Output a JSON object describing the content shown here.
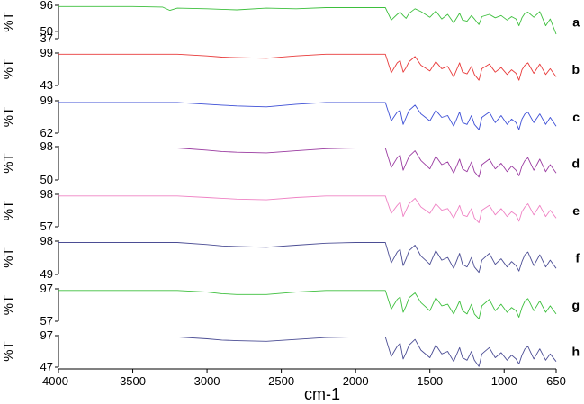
{
  "chart_data": {
    "type": "line",
    "xlabel": "cm-1",
    "xlim": [
      4000,
      650
    ],
    "x_reversed": true,
    "x_ticks": [
      4000,
      3500,
      3000,
      2500,
      2000,
      1500,
      1000,
      650
    ],
    "grid": false,
    "panels": [
      {
        "letter": "a",
        "ylabel": "%T",
        "y_ticks": [
          96,
          50,
          37
        ],
        "ylim": [
          37,
          96
        ],
        "color": "#3dbf3d",
        "x": [
          4000,
          3500,
          3300,
          3250,
          3200,
          3000,
          2900,
          2800,
          2600,
          2400,
          2200,
          2000,
          1800,
          1760,
          1720,
          1700,
          1680,
          1660,
          1640,
          1600,
          1560,
          1500,
          1460,
          1420,
          1380,
          1340,
          1300,
          1280,
          1250,
          1220,
          1200,
          1170,
          1150,
          1100,
          1060,
          1020,
          980,
          950,
          920,
          900,
          880,
          860,
          840,
          800,
          760,
          720,
          690,
          650
        ],
        "y": [
          94,
          94,
          93,
          87,
          91,
          90,
          89,
          88,
          91,
          90,
          92,
          92,
          92,
          70,
          80,
          84,
          78,
          73,
          82,
          90,
          85,
          75,
          86,
          72,
          80,
          65,
          82,
          70,
          68,
          78,
          72,
          62,
          76,
          80,
          74,
          78,
          70,
          76,
          72,
          60,
          74,
          82,
          84,
          75,
          85,
          60,
          72,
          45
        ]
      },
      {
        "letter": "b",
        "ylabel": "%T",
        "y_ticks": [
          99,
          43
        ],
        "ylim": [
          43,
          99
        ],
        "color": "#e83a3a",
        "x": [
          4000,
          3500,
          3200,
          3000,
          2900,
          2800,
          2600,
          2400,
          2200,
          2000,
          1800,
          1760,
          1720,
          1700,
          1680,
          1660,
          1640,
          1600,
          1560,
          1500,
          1460,
          1420,
          1380,
          1340,
          1300,
          1280,
          1250,
          1220,
          1200,
          1170,
          1150,
          1100,
          1060,
          1020,
          980,
          950,
          920,
          900,
          880,
          860,
          840,
          800,
          760,
          720,
          690,
          650
        ],
        "y": [
          97,
          97,
          97,
          94,
          92,
          91,
          90,
          94,
          97,
          97,
          97,
          65,
          82,
          86,
          66,
          74,
          84,
          93,
          78,
          68,
          84,
          72,
          76,
          58,
          82,
          66,
          63,
          76,
          62,
          52,
          72,
          80,
          66,
          74,
          62,
          70,
          64,
          52,
          70,
          78,
          82,
          64,
          80,
          62,
          72,
          58
        ]
      },
      {
        "letter": "c",
        "ylabel": "%T",
        "y_ticks": [
          99,
          62
        ],
        "ylim": [
          62,
          99
        ],
        "color": "#3d4fd6",
        "x": [
          4000,
          3500,
          3200,
          3000,
          2900,
          2800,
          2600,
          2400,
          2200,
          2000,
          1800,
          1760,
          1720,
          1700,
          1680,
          1660,
          1640,
          1600,
          1560,
          1500,
          1460,
          1420,
          1380,
          1340,
          1300,
          1280,
          1250,
          1220,
          1200,
          1170,
          1150,
          1100,
          1060,
          1020,
          980,
          950,
          920,
          900,
          880,
          860,
          840,
          800,
          760,
          720,
          690,
          650
        ],
        "y": [
          97,
          97,
          97,
          95,
          94,
          93,
          92,
          95,
          97,
          97,
          97,
          76,
          86,
          88,
          72,
          80,
          88,
          94,
          84,
          76,
          88,
          80,
          82,
          70,
          86,
          74,
          72,
          82,
          72,
          66,
          80,
          86,
          74,
          82,
          72,
          78,
          74,
          66,
          78,
          84,
          86,
          74,
          84,
          72,
          80,
          70
        ]
      },
      {
        "letter": "d",
        "ylabel": "%T",
        "y_ticks": [
          98,
          50
        ],
        "ylim": [
          50,
          98
        ],
        "color": "#9a3aa0",
        "x": [
          4000,
          3500,
          3200,
          3000,
          2900,
          2800,
          2600,
          2400,
          2200,
          2000,
          1800,
          1760,
          1720,
          1700,
          1680,
          1660,
          1640,
          1600,
          1560,
          1500,
          1460,
          1420,
          1380,
          1340,
          1300,
          1280,
          1250,
          1220,
          1200,
          1170,
          1150,
          1100,
          1060,
          1020,
          980,
          950,
          920,
          900,
          880,
          860,
          840,
          800,
          760,
          720,
          690,
          650
        ],
        "y": [
          96,
          96,
          96,
          93,
          91,
          90,
          89,
          92,
          95,
          96,
          96,
          68,
          82,
          86,
          64,
          74,
          84,
          92,
          78,
          66,
          84,
          72,
          76,
          60,
          80,
          66,
          62,
          76,
          62,
          54,
          72,
          80,
          66,
          74,
          62,
          70,
          64,
          56,
          70,
          78,
          82,
          64,
          80,
          62,
          72,
          60
        ]
      },
      {
        "letter": "e",
        "ylabel": "%T",
        "y_ticks": [
          98,
          57
        ],
        "ylim": [
          57,
          98
        ],
        "color": "#ef82c4",
        "x": [
          4000,
          3500,
          3200,
          3000,
          2900,
          2800,
          2600,
          2400,
          2200,
          2000,
          1800,
          1760,
          1720,
          1700,
          1680,
          1660,
          1640,
          1600,
          1560,
          1500,
          1460,
          1420,
          1380,
          1340,
          1300,
          1280,
          1250,
          1220,
          1200,
          1170,
          1150,
          1100,
          1060,
          1020,
          980,
          950,
          920,
          900,
          880,
          860,
          840,
          800,
          760,
          720,
          690,
          650
        ],
        "y": [
          96,
          96,
          96,
          94,
          93,
          92,
          91,
          94,
          96,
          96,
          96,
          74,
          84,
          88,
          70,
          78,
          86,
          93,
          82,
          74,
          86,
          78,
          80,
          68,
          84,
          72,
          70,
          80,
          68,
          62,
          78,
          84,
          72,
          80,
          70,
          76,
          72,
          64,
          76,
          82,
          86,
          72,
          84,
          70,
          78,
          68
        ]
      },
      {
        "letter": "f",
        "ylabel": "%T",
        "y_ticks": [
          98,
          49
        ],
        "ylim": [
          49,
          98
        ],
        "color": "#4b4d94",
        "x": [
          4000,
          3500,
          3200,
          3000,
          2900,
          2800,
          2600,
          2400,
          2200,
          2000,
          1800,
          1760,
          1720,
          1700,
          1680,
          1660,
          1640,
          1600,
          1560,
          1500,
          1460,
          1420,
          1380,
          1340,
          1300,
          1280,
          1250,
          1220,
          1200,
          1170,
          1150,
          1100,
          1060,
          1020,
          980,
          950,
          920,
          900,
          880,
          860,
          840,
          800,
          760,
          720,
          690,
          650
        ],
        "y": [
          96,
          96,
          96,
          93,
          91,
          90,
          89,
          92,
          95,
          96,
          96,
          66,
          82,
          86,
          62,
          72,
          84,
          92,
          76,
          64,
          84,
          70,
          74,
          58,
          80,
          64,
          60,
          74,
          60,
          52,
          70,
          80,
          64,
          72,
          60,
          68,
          62,
          54,
          68,
          78,
          82,
          62,
          78,
          60,
          70,
          58
        ]
      },
      {
        "letter": "g",
        "ylabel": "%T",
        "y_ticks": [
          97,
          57
        ],
        "ylim": [
          57,
          97
        ],
        "color": "#3dbf3d",
        "x": [
          4000,
          3500,
          3200,
          3000,
          2900,
          2800,
          2600,
          2400,
          2200,
          2000,
          1800,
          1760,
          1720,
          1700,
          1680,
          1660,
          1640,
          1600,
          1560,
          1500,
          1460,
          1420,
          1380,
          1340,
          1300,
          1280,
          1250,
          1220,
          1200,
          1170,
          1150,
          1100,
          1060,
          1020,
          980,
          950,
          920,
          900,
          880,
          860,
          840,
          800,
          760,
          720,
          690,
          650
        ],
        "y": [
          95,
          95,
          95,
          93,
          91,
          90,
          90,
          93,
          95,
          95,
          95,
          72,
          84,
          87,
          68,
          76,
          86,
          92,
          80,
          70,
          86,
          76,
          78,
          66,
          82,
          70,
          66,
          78,
          66,
          60,
          76,
          84,
          70,
          78,
          68,
          74,
          70,
          62,
          74,
          82,
          85,
          70,
          82,
          68,
          76,
          66
        ]
      },
      {
        "letter": "h",
        "ylabel": "%T",
        "y_ticks": [
          97,
          47
        ],
        "ylim": [
          47,
          97
        ],
        "color": "#4b4d94",
        "x": [
          4000,
          3500,
          3200,
          3000,
          2900,
          2800,
          2600,
          2400,
          2200,
          2000,
          1800,
          1760,
          1720,
          1700,
          1680,
          1660,
          1640,
          1600,
          1560,
          1500,
          1460,
          1420,
          1380,
          1340,
          1300,
          1280,
          1250,
          1220,
          1200,
          1170,
          1150,
          1100,
          1060,
          1020,
          980,
          950,
          920,
          900,
          880,
          860,
          840,
          800,
          760,
          720,
          690,
          650
        ],
        "y": [
          95,
          95,
          95,
          92,
          90,
          89,
          88,
          91,
          94,
          95,
          95,
          64,
          80,
          85,
          60,
          70,
          82,
          91,
          74,
          62,
          82,
          68,
          72,
          56,
          78,
          62,
          58,
          72,
          58,
          48,
          68,
          78,
          62,
          70,
          58,
          66,
          60,
          52,
          66,
          76,
          80,
          60,
          76,
          58,
          68,
          56
        ]
      }
    ]
  }
}
